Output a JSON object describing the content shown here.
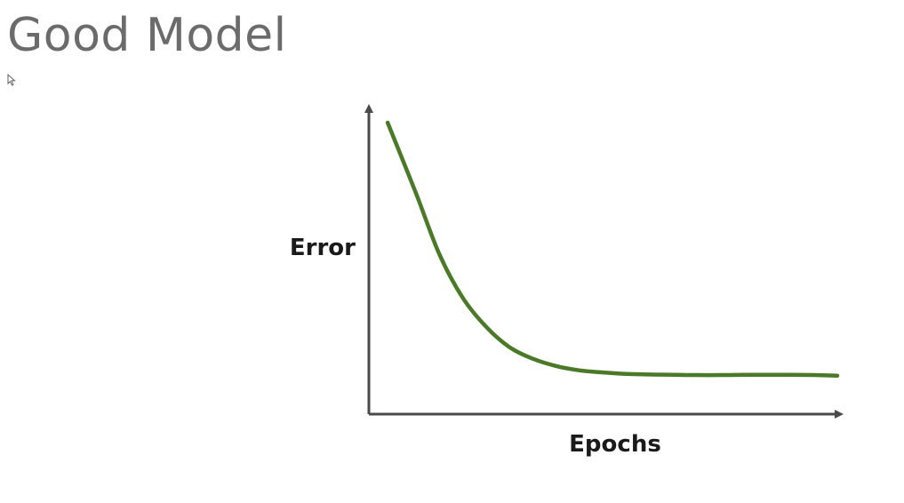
{
  "slide": {
    "title": "Good Model"
  },
  "chart_data": {
    "type": "line",
    "xlabel": "Epochs",
    "ylabel": "Error",
    "xlim": [
      0,
      100
    ],
    "ylim": [
      0,
      100
    ],
    "grid": false,
    "ticks": false,
    "x": [
      4,
      10,
      15,
      20,
      25,
      30,
      35,
      40,
      45,
      50,
      55,
      60,
      65,
      70,
      75,
      80,
      85,
      90,
      95,
      100
    ],
    "series": [
      {
        "color": "#4a7a28",
        "values": [
          100,
          76,
          55,
          40,
          30,
          23,
          19,
          16.5,
          15,
          14.3,
          13.8,
          13.6,
          13.5,
          13.4,
          13.4,
          13.5,
          13.5,
          13.5,
          13.4,
          13.2
        ]
      }
    ],
    "axis_color": "#4a4a4a"
  }
}
